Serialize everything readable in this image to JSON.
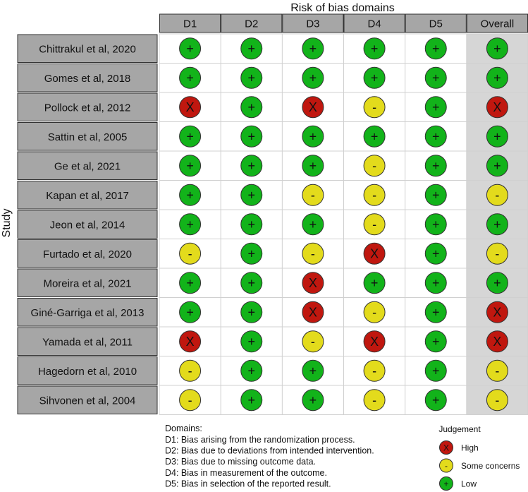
{
  "chart_data": {
    "type": "table",
    "title": "Risk of bias domains",
    "ylabel": "Study",
    "columns": [
      "D1",
      "D2",
      "D3",
      "D4",
      "D5",
      "Overall"
    ],
    "rows": [
      {
        "study": "Chittrakul et al, 2020",
        "judgements": [
          "low",
          "low",
          "low",
          "low",
          "low",
          "low"
        ]
      },
      {
        "study": "Gomes et al, 2018",
        "judgements": [
          "low",
          "low",
          "low",
          "low",
          "low",
          "low"
        ]
      },
      {
        "study": "Pollock et al, 2012",
        "judgements": [
          "high",
          "low",
          "high",
          "some",
          "low",
          "high"
        ]
      },
      {
        "study": "Sattin et al, 2005",
        "judgements": [
          "low",
          "low",
          "low",
          "low",
          "low",
          "low"
        ]
      },
      {
        "study": "Ge et al, 2021",
        "judgements": [
          "low",
          "low",
          "low",
          "some",
          "low",
          "low"
        ]
      },
      {
        "study": "Kapan et al, 2017",
        "judgements": [
          "low",
          "low",
          "some",
          "some",
          "low",
          "some"
        ]
      },
      {
        "study": "Jeon et al, 2014",
        "judgements": [
          "low",
          "low",
          "low",
          "some",
          "low",
          "low"
        ]
      },
      {
        "study": "Furtado et al, 2020",
        "judgements": [
          "some",
          "low",
          "some",
          "high",
          "low",
          "some"
        ]
      },
      {
        "study": "Moreira et al, 2021",
        "judgements": [
          "low",
          "low",
          "high",
          "low",
          "low",
          "low"
        ]
      },
      {
        "study": "Giné-Garriga et al, 2013",
        "judgements": [
          "low",
          "low",
          "high",
          "some",
          "low",
          "high"
        ]
      },
      {
        "study": "Yamada et al, 2011",
        "judgements": [
          "high",
          "low",
          "some",
          "high",
          "low",
          "high"
        ]
      },
      {
        "study": "Hagedorn et al, 2010",
        "judgements": [
          "some",
          "low",
          "low",
          "some",
          "low",
          "some"
        ]
      },
      {
        "study": "Sihvonen et al, 2004",
        "judgements": [
          "some",
          "low",
          "low",
          "some",
          "low",
          "some"
        ]
      }
    ],
    "judgement_levels": {
      "high": {
        "symbol": "X",
        "label": "High",
        "color": "#c0170f"
      },
      "some": {
        "symbol": "-",
        "label": "Some concerns",
        "color": "#e3db1c"
      },
      "low": {
        "symbol": "+",
        "label": "Low",
        "color": "#12b31a"
      }
    },
    "legend": {
      "title": "Judgement",
      "order": [
        "high",
        "some",
        "low"
      ],
      "position": "bottom-right"
    },
    "domains_heading": "Domains:",
    "domain_descriptions": [
      "D1: Bias arising from the randomization process.",
      "D2: Bias due to deviations from intended intervention.",
      "D3: Bias due to missing outcome data.",
      "D4: Bias in measurement of the outcome.",
      "D5: Bias in selection of the reported result."
    ]
  }
}
